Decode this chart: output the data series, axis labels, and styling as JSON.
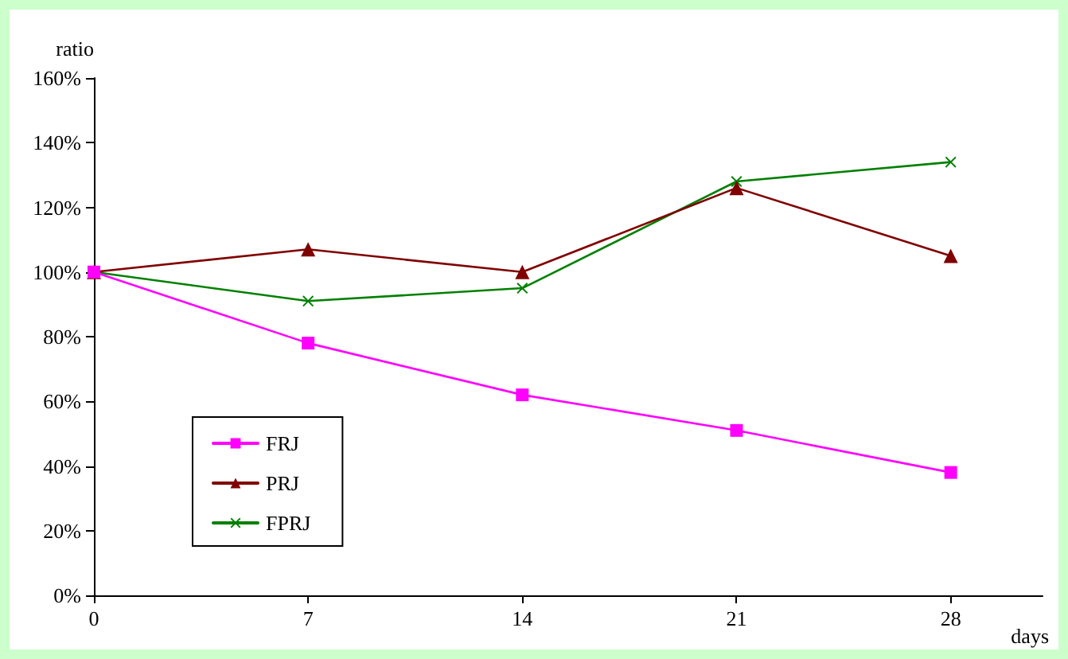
{
  "chart_data": {
    "type": "line",
    "xlabel": "days",
    "ylabel": "ratio",
    "x": [
      0,
      7,
      14,
      21,
      28
    ],
    "series": [
      {
        "name": "FRJ",
        "color": "#ff00ff",
        "marker": "square",
        "values": [
          100,
          78,
          62,
          51,
          38
        ]
      },
      {
        "name": "PRJ",
        "color": "#800000",
        "marker": "triangle",
        "values": [
          100,
          107,
          100,
          126,
          105
        ]
      },
      {
        "name": "FPRJ",
        "color": "#008000",
        "marker": "cross",
        "values": [
          100,
          91,
          95,
          128,
          134
        ]
      }
    ],
    "xlim": [
      0,
      31
    ],
    "xticks": [
      0,
      7,
      14,
      21,
      28
    ],
    "ylim": [
      0,
      160
    ],
    "yticks": [
      {
        "value": 0,
        "label": "0%"
      },
      {
        "value": 20,
        "label": "20%"
      },
      {
        "value": 40,
        "label": "40%"
      },
      {
        "value": 60,
        "label": "60%"
      },
      {
        "value": 80,
        "label": "80%"
      },
      {
        "value": 100,
        "label": "100%"
      },
      {
        "value": 120,
        "label": "120%"
      },
      {
        "value": 140,
        "label": "140%"
      },
      {
        "value": 160,
        "label": "160%"
      }
    ],
    "grid": false,
    "legend": "bottom left",
    "line_style": "solid"
  }
}
